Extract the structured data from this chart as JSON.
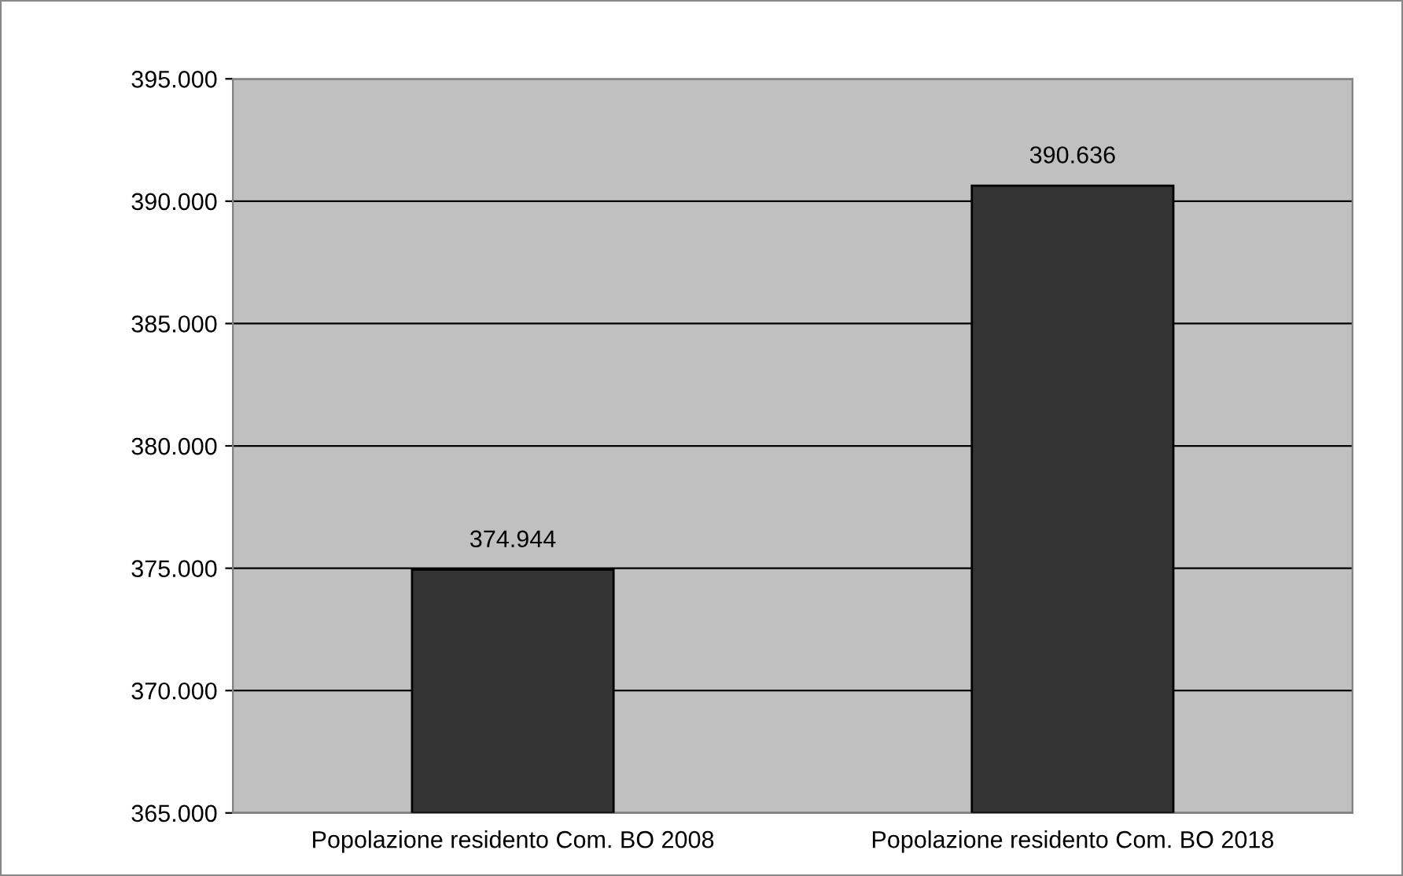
{
  "chart_data": {
    "type": "bar",
    "categories": [
      "Popolazione residento Com. BO 2008",
      "Popolazione residento Com. BO 2018"
    ],
    "series": [
      {
        "color": "#333333",
        "values": [
          374944,
          390636
        ],
        "value_labels": [
          "374.944",
          "390.636"
        ]
      }
    ],
    "ylim": [
      365000,
      395000
    ],
    "yticks": [
      {
        "value": 365000,
        "label": "365.000"
      },
      {
        "value": 370000,
        "label": "370.000"
      },
      {
        "value": 375000,
        "label": "375.000"
      },
      {
        "value": 380000,
        "label": "380.000"
      },
      {
        "value": 385000,
        "label": "385.000"
      },
      {
        "value": 390000,
        "label": "390.000"
      },
      {
        "value": 395000,
        "label": "395.000"
      }
    ],
    "grid": "y",
    "legend": false
  }
}
